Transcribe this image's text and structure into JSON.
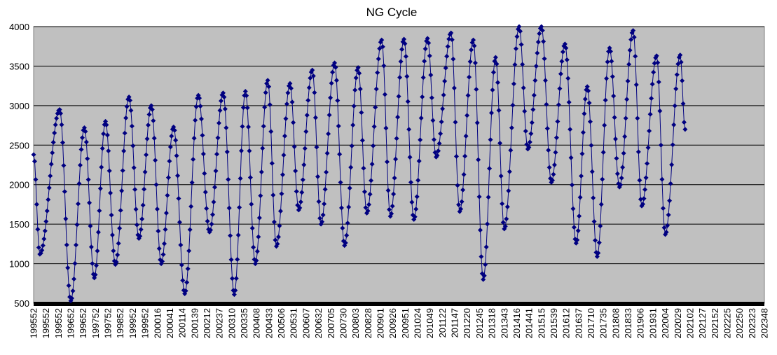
{
  "chart_data": {
    "type": "line",
    "title": "NG Cycle",
    "xlabel": "",
    "ylabel": "",
    "ylim": [
      500,
      4000
    ],
    "yticks": [
      500,
      1000,
      1500,
      2000,
      2500,
      3000,
      3500,
      4000
    ],
    "grid": true,
    "legend": "none",
    "background": "#c0c0c0",
    "series_color": "#000080",
    "marker": "diamond",
    "x_tick_labels": [
      "199552",
      "199552",
      "199552",
      "199652",
      "199652",
      "199752",
      "199752",
      "199852",
      "199952",
      "199952",
      "200016",
      "200041",
      "200114",
      "200139",
      "200212",
      "200237",
      "200310",
      "200335",
      "200408",
      "200433",
      "200506",
      "200531",
      "200607",
      "200632",
      "200705",
      "200730",
      "200803",
      "200828",
      "200901",
      "200926",
      "200951",
      "201024",
      "201049",
      "201122",
      "201147",
      "201220",
      "201245",
      "201318",
      "201343",
      "201416",
      "201441",
      "201515",
      "201539",
      "201612",
      "201637",
      "201710",
      "201735",
      "201808",
      "201833",
      "201906",
      "201931",
      "202004",
      "202029",
      "202102",
      "202127",
      "202152",
      "202225",
      "202250",
      "202323",
      "202348"
    ],
    "series": [
      {
        "name": "",
        "cycle_extrema": [
          {
            "tick": 0.0,
            "y": 2380
          },
          {
            "tick": 0.5,
            "y": 1120
          },
          {
            "tick": 2.1,
            "y": 2950
          },
          {
            "tick": 3.0,
            "y": 530
          },
          {
            "tick": 4.1,
            "y": 2720
          },
          {
            "tick": 4.9,
            "y": 820
          },
          {
            "tick": 5.8,
            "y": 2800
          },
          {
            "tick": 6.6,
            "y": 990
          },
          {
            "tick": 7.7,
            "y": 3110
          },
          {
            "tick": 8.5,
            "y": 1320
          },
          {
            "tick": 9.5,
            "y": 3000
          },
          {
            "tick": 10.3,
            "y": 1000
          },
          {
            "tick": 11.3,
            "y": 2730
          },
          {
            "tick": 12.2,
            "y": 620
          },
          {
            "tick": 13.3,
            "y": 3130
          },
          {
            "tick": 14.2,
            "y": 1400
          },
          {
            "tick": 15.3,
            "y": 3160
          },
          {
            "tick": 16.2,
            "y": 610
          },
          {
            "tick": 17.1,
            "y": 3180
          },
          {
            "tick": 17.9,
            "y": 1000
          },
          {
            "tick": 18.9,
            "y": 3320
          },
          {
            "tick": 19.6,
            "y": 1220
          },
          {
            "tick": 20.7,
            "y": 3280
          },
          {
            "tick": 21.4,
            "y": 1680
          },
          {
            "tick": 22.5,
            "y": 3450
          },
          {
            "tick": 23.2,
            "y": 1500
          },
          {
            "tick": 24.3,
            "y": 3540
          },
          {
            "tick": 25.1,
            "y": 1230
          },
          {
            "tick": 26.2,
            "y": 3480
          },
          {
            "tick": 26.9,
            "y": 1640
          },
          {
            "tick": 28.1,
            "y": 3830
          },
          {
            "tick": 28.8,
            "y": 1600
          },
          {
            "tick": 29.9,
            "y": 3840
          },
          {
            "tick": 30.7,
            "y": 1560
          },
          {
            "tick": 31.8,
            "y": 3850
          },
          {
            "tick": 32.5,
            "y": 2350
          },
          {
            "tick": 33.7,
            "y": 3920
          },
          {
            "tick": 34.4,
            "y": 1660
          },
          {
            "tick": 35.5,
            "y": 3830
          },
          {
            "tick": 36.3,
            "y": 800
          },
          {
            "tick": 37.3,
            "y": 3610
          },
          {
            "tick": 38.0,
            "y": 1440
          },
          {
            "tick": 39.2,
            "y": 4000
          },
          {
            "tick": 39.9,
            "y": 2450
          },
          {
            "tick": 41.0,
            "y": 4000
          },
          {
            "tick": 41.8,
            "y": 2030
          },
          {
            "tick": 42.9,
            "y": 3780
          },
          {
            "tick": 43.8,
            "y": 1260
          },
          {
            "tick": 44.7,
            "y": 3240
          },
          {
            "tick": 45.5,
            "y": 1090
          },
          {
            "tick": 46.5,
            "y": 3730
          },
          {
            "tick": 47.3,
            "y": 1970
          },
          {
            "tick": 48.4,
            "y": 3950
          },
          {
            "tick": 49.1,
            "y": 1730
          },
          {
            "tick": 50.3,
            "y": 3630
          },
          {
            "tick": 51.0,
            "y": 1370
          },
          {
            "tick": 52.2,
            "y": 3640
          },
          {
            "tick": 52.6,
            "y": 2700
          }
        ]
      }
    ]
  }
}
